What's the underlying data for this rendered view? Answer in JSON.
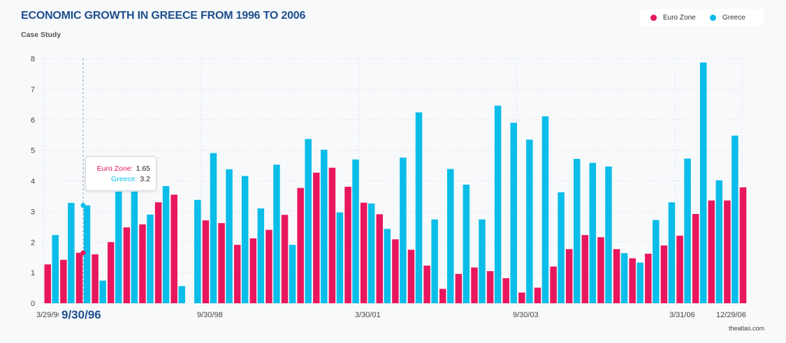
{
  "title": "ECONOMIC GROWTH IN GREECE FROM 1996 TO 2006",
  "subtitle": "Case Study",
  "source": "theatlas.com",
  "colors": {
    "euro": "#e8175d",
    "greece": "#0bbde9",
    "title": "#1e4f8c"
  },
  "legend": [
    {
      "label": "Euro Zone",
      "color": "#e8175d"
    },
    {
      "label": "Greece",
      "color": "#0bbde9"
    }
  ],
  "tooltip": {
    "euro_label": "Euro Zone:",
    "euro_value": "1.65",
    "greece_label": "Greece:",
    "greece_value": "3.2"
  },
  "highlight_label": "9/30/96",
  "chart_data": {
    "type": "bar",
    "title": "ECONOMIC GROWTH IN GREECE FROM 1996 TO 2006",
    "subtitle": "Case Study",
    "ylim": [
      0,
      8
    ],
    "yticks": [
      "0",
      "1",
      "2",
      "3",
      "4",
      "5",
      "6",
      "7",
      "8"
    ],
    "grid": true,
    "legend_position": "top-right",
    "x_tick_labels": [
      {
        "index": 0,
        "label": "3/29/96"
      },
      {
        "index": 10,
        "label": "9/30/98"
      },
      {
        "index": 20,
        "label": "3/30/01"
      },
      {
        "index": 30,
        "label": "9/30/03"
      },
      {
        "index": 40,
        "label": "3/31/06"
      },
      {
        "index": 43,
        "label": "12/29/06"
      }
    ],
    "highlight_index": 2,
    "series": [
      {
        "name": "Euro Zone",
        "values": [
          1.27,
          1.42,
          1.65,
          1.6,
          2.0,
          2.48,
          2.58,
          3.3,
          3.55,
          null,
          2.71,
          2.62,
          1.91,
          2.12,
          2.4,
          2.89,
          3.77,
          4.27,
          4.43,
          3.81,
          3.29,
          2.91,
          2.09,
          1.75,
          1.23,
          0.47,
          0.96,
          1.17,
          1.05,
          0.82,
          0.35,
          0.51,
          1.2,
          1.77,
          2.23,
          2.16,
          1.77,
          1.47,
          1.62,
          1.89,
          2.21,
          2.92,
          3.36,
          3.36,
          3.79
        ]
      },
      {
        "name": "Greece",
        "values": [
          2.23,
          3.28,
          3.2,
          0.74,
          3.65,
          3.65,
          2.9,
          3.83,
          0.56,
          3.38,
          4.91,
          4.38,
          4.16,
          3.1,
          4.53,
          1.91,
          5.37,
          5.02,
          2.97,
          4.7,
          3.26,
          2.43,
          4.76,
          6.24,
          2.74,
          4.39,
          3.88,
          2.74,
          6.46,
          5.9,
          5.35,
          6.11,
          3.63,
          4.72,
          4.59,
          4.47,
          1.64,
          1.33,
          2.72,
          3.3,
          4.73,
          7.87,
          4.02,
          5.48,
          null
        ]
      }
    ]
  }
}
